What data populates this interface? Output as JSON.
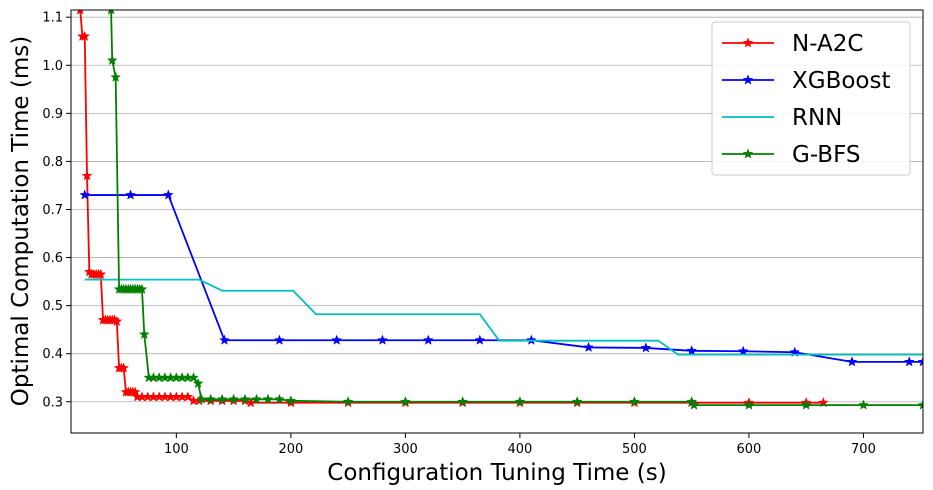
{
  "chart_data": {
    "type": "line",
    "title": "",
    "xlabel": "Configuration Tuning Time (s)",
    "ylabel": "Optimal Computation Time (ms)",
    "xlim": [
      8,
      752
    ],
    "ylim": [
      0.235,
      1.115
    ],
    "xticks": [
      100,
      200,
      300,
      400,
      500,
      600,
      700
    ],
    "yticks": [
      0.3,
      0.4,
      0.5,
      0.6,
      0.7,
      0.8,
      0.9,
      1.0,
      1.1
    ],
    "grid": "horizontal",
    "legend_position": "top-right",
    "series": [
      {
        "name": "N-A2C",
        "color": "#ff0000",
        "marker": "star",
        "points": [
          [
            16,
            1.115
          ],
          [
            18,
            1.06
          ],
          [
            20,
            1.06
          ],
          [
            22,
            0.77
          ],
          [
            24,
            0.57
          ],
          [
            26,
            0.565
          ],
          [
            28,
            0.565
          ],
          [
            30,
            0.565
          ],
          [
            32,
            0.565
          ],
          [
            34,
            0.565
          ],
          [
            36,
            0.47
          ],
          [
            38,
            0.47
          ],
          [
            40,
            0.47
          ],
          [
            42,
            0.47
          ],
          [
            44,
            0.47
          ],
          [
            46,
            0.47
          ],
          [
            48,
            0.467
          ],
          [
            50,
            0.37
          ],
          [
            52,
            0.37
          ],
          [
            54,
            0.37
          ],
          [
            56,
            0.32
          ],
          [
            58,
            0.32
          ],
          [
            60,
            0.32
          ],
          [
            62,
            0.32
          ],
          [
            64,
            0.32
          ],
          [
            66,
            0.31
          ],
          [
            70,
            0.31
          ],
          [
            75,
            0.31
          ],
          [
            80,
            0.31
          ],
          [
            85,
            0.31
          ],
          [
            90,
            0.31
          ],
          [
            95,
            0.31
          ],
          [
            100,
            0.31
          ],
          [
            105,
            0.31
          ],
          [
            110,
            0.31
          ],
          [
            115,
            0.302
          ],
          [
            120,
            0.302
          ],
          [
            130,
            0.302
          ],
          [
            140,
            0.302
          ],
          [
            150,
            0.302
          ],
          [
            160,
            0.302
          ],
          [
            165,
            0.298
          ],
          [
            200,
            0.298
          ],
          [
            250,
            0.298
          ],
          [
            300,
            0.298
          ],
          [
            350,
            0.298
          ],
          [
            400,
            0.298
          ],
          [
            450,
            0.298
          ],
          [
            500,
            0.298
          ],
          [
            550,
            0.298
          ],
          [
            600,
            0.298
          ],
          [
            650,
            0.298
          ],
          [
            665,
            0.298
          ]
        ]
      },
      {
        "name": "XGBoost",
        "color": "#0000ff",
        "marker": "star",
        "points": [
          [
            20,
            0.73
          ],
          [
            60,
            0.73
          ],
          [
            93,
            0.73
          ],
          [
            142,
            0.428
          ],
          [
            190,
            0.428
          ],
          [
            240,
            0.428
          ],
          [
            280,
            0.428
          ],
          [
            320,
            0.428
          ],
          [
            365,
            0.428
          ],
          [
            410,
            0.428
          ],
          [
            460,
            0.413
          ],
          [
            510,
            0.412
          ],
          [
            550,
            0.406
          ],
          [
            595,
            0.405
          ],
          [
            640,
            0.403
          ],
          [
            690,
            0.383
          ],
          [
            740,
            0.383
          ],
          [
            752,
            0.383
          ]
        ]
      },
      {
        "name": "RNN",
        "color": "#00bfbf",
        "marker": "none",
        "points": [
          [
            20,
            0.554
          ],
          [
            120,
            0.554
          ],
          [
            140,
            0.531
          ],
          [
            202,
            0.531
          ],
          [
            222,
            0.482
          ],
          [
            365,
            0.482
          ],
          [
            382,
            0.427
          ],
          [
            521,
            0.427
          ],
          [
            538,
            0.398
          ],
          [
            752,
            0.398
          ]
        ]
      },
      {
        "name": "G-BFS",
        "color": "#008000",
        "marker": "star",
        "points": [
          [
            43,
            1.115
          ],
          [
            44,
            1.01
          ],
          [
            47,
            0.975
          ],
          [
            50,
            0.534
          ],
          [
            52,
            0.534
          ],
          [
            54,
            0.534
          ],
          [
            56,
            0.534
          ],
          [
            58,
            0.534
          ],
          [
            60,
            0.534
          ],
          [
            62,
            0.534
          ],
          [
            64,
            0.534
          ],
          [
            66,
            0.534
          ],
          [
            68,
            0.534
          ],
          [
            70,
            0.534
          ],
          [
            72,
            0.44
          ],
          [
            76,
            0.35
          ],
          [
            80,
            0.35
          ],
          [
            85,
            0.35
          ],
          [
            90,
            0.35
          ],
          [
            95,
            0.35
          ],
          [
            100,
            0.35
          ],
          [
            105,
            0.35
          ],
          [
            110,
            0.35
          ],
          [
            115,
            0.35
          ],
          [
            119,
            0.338
          ],
          [
            122,
            0.305
          ],
          [
            130,
            0.305
          ],
          [
            140,
            0.305
          ],
          [
            150,
            0.305
          ],
          [
            160,
            0.305
          ],
          [
            170,
            0.305
          ],
          [
            180,
            0.305
          ],
          [
            190,
            0.305
          ],
          [
            200,
            0.302
          ],
          [
            250,
            0.3
          ],
          [
            300,
            0.3
          ],
          [
            350,
            0.3
          ],
          [
            400,
            0.3
          ],
          [
            450,
            0.3
          ],
          [
            500,
            0.3
          ],
          [
            550,
            0.3
          ],
          [
            552,
            0.293
          ],
          [
            600,
            0.293
          ],
          [
            650,
            0.293
          ],
          [
            700,
            0.293
          ],
          [
            752,
            0.293
          ]
        ]
      }
    ]
  }
}
